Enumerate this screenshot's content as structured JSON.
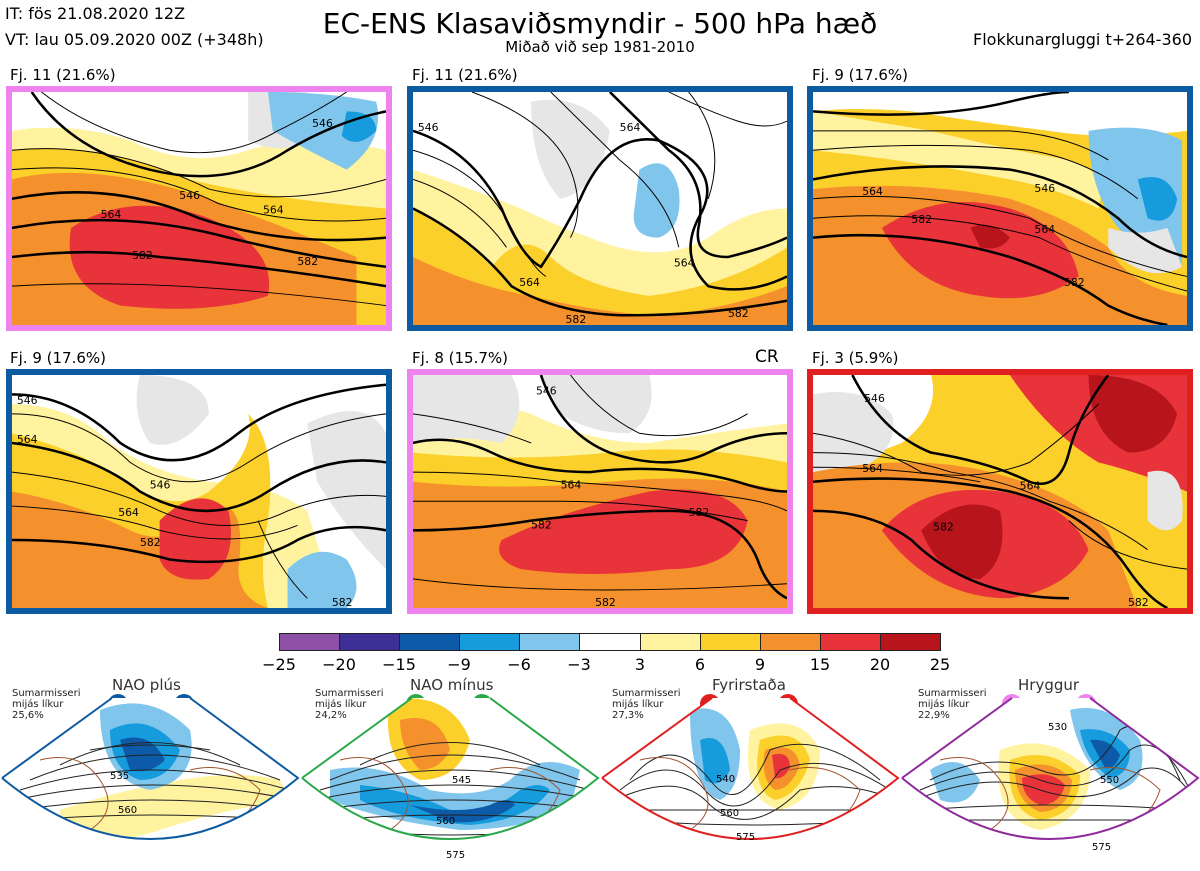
{
  "header": {
    "it": "IT: fös 21.08.2020 12Z",
    "vt": "VT: lau 05.09.2020 00Z  (+348h)",
    "title": "EC-ENS Klasaviðsmyndir - 500 hPa hæð",
    "subtitle": "Miðað við sep 1981-2010",
    "window": "Flokkunargluggi t+264-360"
  },
  "panels": [
    {
      "label": "Fj. 11 (21.6%)",
      "border": "#ee82ee",
      "contours": [
        "546",
        "564",
        "546",
        "564",
        "582",
        "582"
      ]
    },
    {
      "label": "Fj. 11 (21.6%)",
      "border": "#0d5aa0",
      "contours": [
        "546",
        "564",
        "564",
        "564",
        "582",
        "582"
      ]
    },
    {
      "label": "Fj. 9 (17.6%)",
      "border": "#0d5aa0",
      "contours": [
        "546",
        "564",
        "582",
        "564",
        "582"
      ]
    },
    {
      "label": "Fj. 9 (17.6%)",
      "border": "#0d5aa0",
      "contours": [
        "546",
        "564",
        "546",
        "564",
        "582",
        "582"
      ]
    },
    {
      "label": "Fj. 8 (15.7%)",
      "border": "#ee82ee",
      "contours": [
        "546",
        "564",
        "582",
        "582",
        "582"
      ]
    },
    {
      "label": "Fj. 3 (5.9%)",
      "border": "#e02020",
      "contours": [
        "546",
        "564",
        "564",
        "582",
        "582"
      ]
    }
  ],
  "cr_label": "CR",
  "colorbar": {
    "colors": [
      "#8e4fa6",
      "#3d2f96",
      "#0d5aa8",
      "#169bdc",
      "#80c5ec",
      "#ffffff",
      "#fff3a0",
      "#fcd02a",
      "#f5912c",
      "#e8333a",
      "#b8141c"
    ],
    "ticks": [
      "−25",
      "−20",
      "−15",
      "−9",
      "−6",
      "−3",
      "3",
      "6",
      "9",
      "15",
      "20",
      "25"
    ]
  },
  "regimes": [
    {
      "title": "NAO plús",
      "note": "Sumarmisseri mijás líkur 25,6%",
      "border": "#0d5aa0",
      "dot": "#0d5aa0",
      "contours": [
        "535",
        "560"
      ]
    },
    {
      "title": "NAO mínus",
      "note": "Sumarmisseri mijás líkur 24,2%",
      "border": "#2aa84a",
      "dot": "#2aa84a",
      "contours": [
        "545",
        "560",
        "575"
      ]
    },
    {
      "title": "Fyrirstaða",
      "note": "Sumarmisseri mijás líkur 27,3%",
      "border": "#e02020",
      "dot": "#e02020",
      "contours": [
        "540",
        "560",
        "575"
      ]
    },
    {
      "title": "Hryggur",
      "note": "Sumarmisseri mijás líkur 22,9%",
      "border": "#8e2a9a",
      "dot": "#ee82ee",
      "contours": [
        "530",
        "550",
        "575"
      ]
    }
  ]
}
